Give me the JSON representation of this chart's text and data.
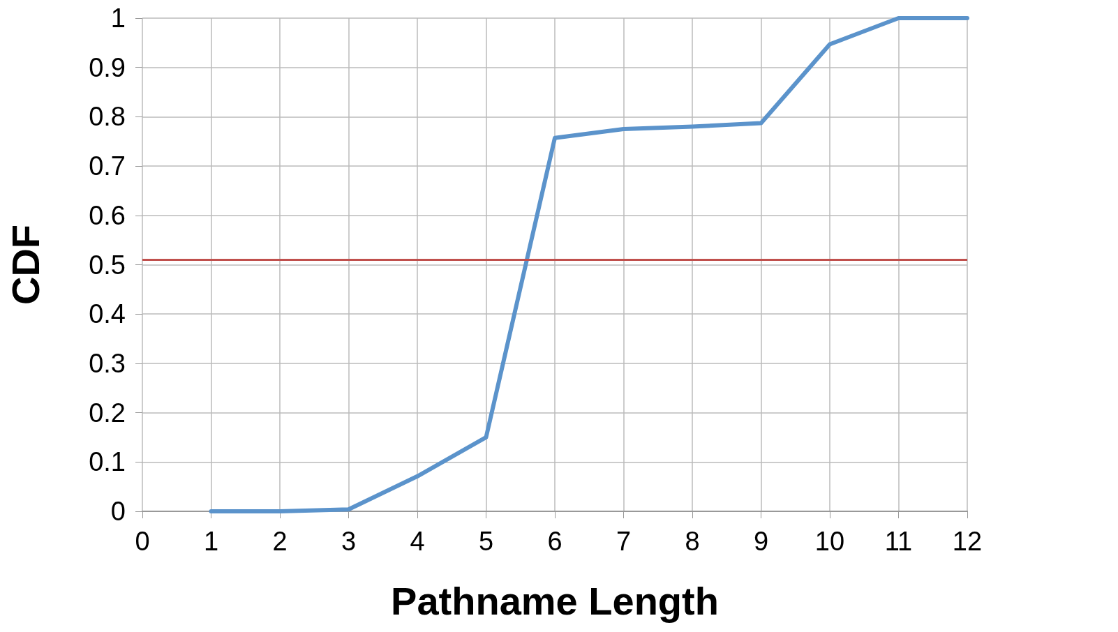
{
  "chart_data": {
    "type": "line",
    "xlabel": "Pathname Length",
    "ylabel": "CDF",
    "x": [
      1,
      2,
      3,
      4,
      5,
      6,
      7,
      8,
      9,
      10,
      11,
      12
    ],
    "series": [
      {
        "color": "#5b93cb",
        "values": [
          0,
          0,
          0.004,
          0.071,
          0.15,
          0.757,
          0.775,
          0.78,
          0.787,
          0.947,
          1,
          1
        ]
      }
    ],
    "xlim": [
      0,
      12
    ],
    "xticks": [
      0,
      1,
      2,
      3,
      4,
      5,
      6,
      7,
      8,
      9,
      10,
      11,
      12
    ],
    "ylim": [
      0,
      1
    ],
    "yticks": [
      0,
      0.1,
      0.2,
      0.3,
      0.4,
      0.5,
      0.6,
      0.7,
      0.8,
      0.9,
      1
    ],
    "ref_lines": [
      {
        "axis": "y",
        "value": 0.51,
        "color": "#c0504d"
      }
    ],
    "grid": true,
    "marker": "none",
    "line_style": "solid"
  }
}
